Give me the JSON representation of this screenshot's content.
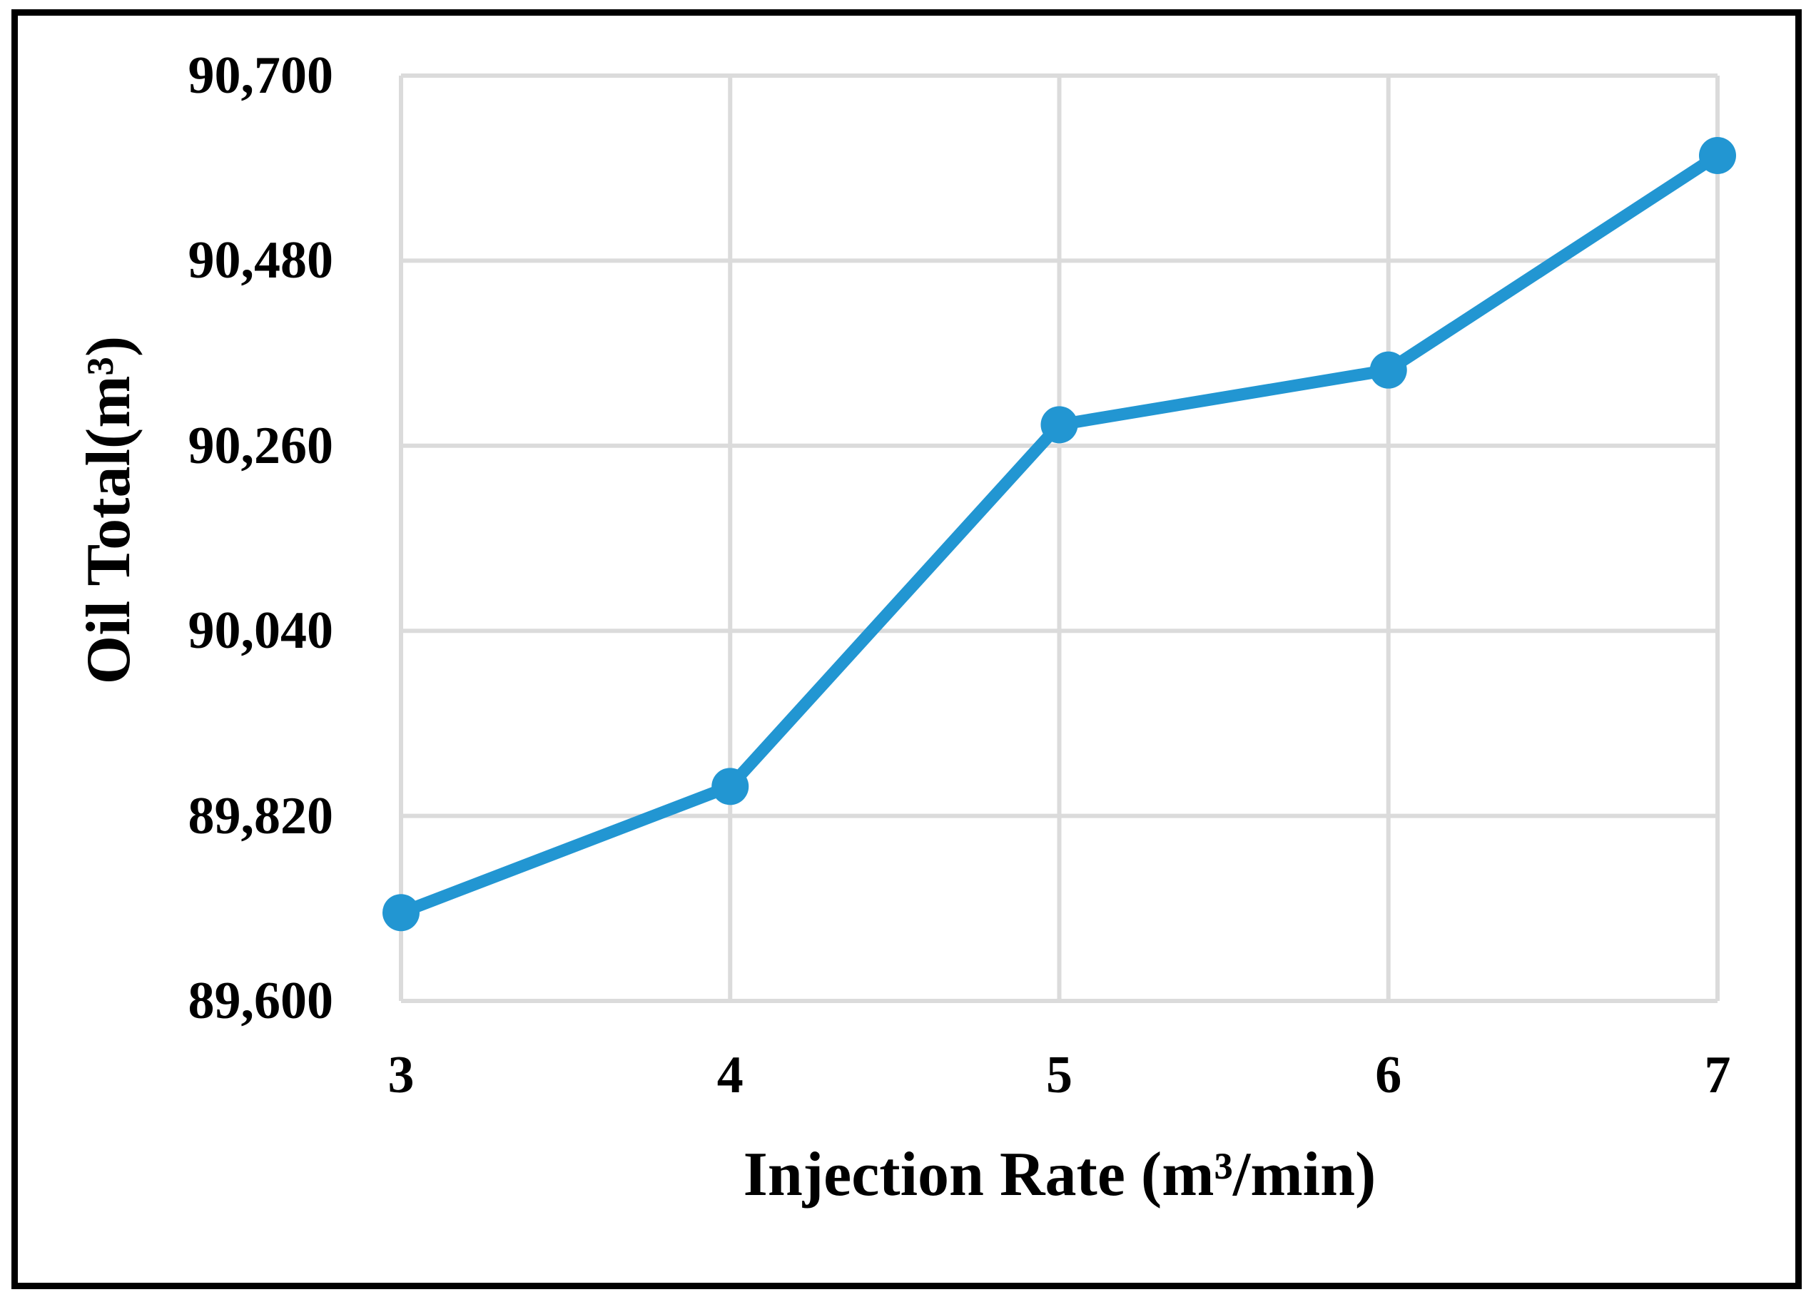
{
  "figure": {
    "background": "#FFFFFF",
    "border_color": "#000000",
    "text_color": "#000000"
  },
  "chart_data": {
    "type": "line",
    "title": "",
    "xlabel": "Injection Rate (m³/min)",
    "ylabel": "Oil Total(m³)",
    "x": [
      3,
      4,
      5,
      6,
      7
    ],
    "series": [
      {
        "name": "Oil Total",
        "values": [
          89705,
          89855,
          90285,
          90350,
          90605
        ]
      }
    ],
    "xticks": [
      {
        "value": 3,
        "label": "3"
      },
      {
        "value": 4,
        "label": "4"
      },
      {
        "value": 5,
        "label": "5"
      },
      {
        "value": 6,
        "label": "6"
      },
      {
        "value": 7,
        "label": "7"
      }
    ],
    "yticks": [
      {
        "value": 89600,
        "label": "89,600"
      },
      {
        "value": 89820,
        "label": "89,820"
      },
      {
        "value": 90040,
        "label": "90,040"
      },
      {
        "value": 90260,
        "label": "90,260"
      },
      {
        "value": 90480,
        "label": "90,480"
      },
      {
        "value": 90700,
        "label": "90,700"
      }
    ],
    "xlim": [
      3,
      7
    ],
    "ylim": [
      89600,
      90700
    ],
    "grid": true,
    "legend_position": "none",
    "line_color": "#2296D2",
    "marker": "circle",
    "marker_color": "#2296D2",
    "gridline_color": "#DBDBDB"
  }
}
